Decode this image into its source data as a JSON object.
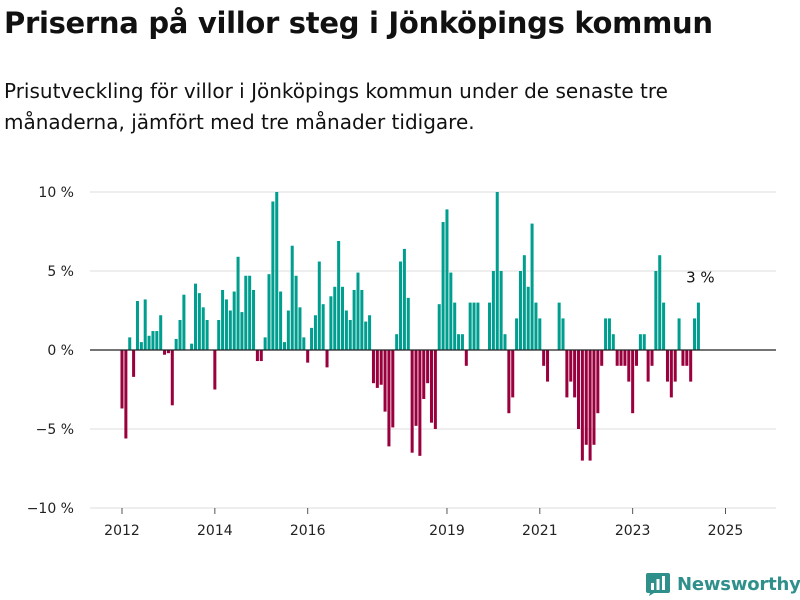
{
  "header": {
    "title": "Priserna på villor steg i Jönköpings kommun",
    "subtitle": "Prisutveckling för villor i Jönköpings kommun under de senaste tre månaderna, jämfört med tre månader tidigare."
  },
  "brand": {
    "name": "Newsworthy",
    "color": "#2f8f8a",
    "icon": "bar-chart-logo-icon"
  },
  "chart_data": {
    "type": "bar",
    "title": "",
    "xlabel": "",
    "ylabel": "",
    "ylim": [
      -10,
      10
    ],
    "yticks": [
      10,
      5,
      0,
      -5,
      -10
    ],
    "ytick_labels": [
      "10 %",
      "5 %",
      "0 %",
      "−5 %",
      "−10 %"
    ],
    "xticks": [
      2012,
      2014,
      2016,
      2019,
      2021,
      2023,
      2025
    ],
    "xtick_labels": [
      "2012",
      "2014",
      "2016",
      "2019",
      "2021",
      "2023",
      "2025"
    ],
    "x_start": 2012.0,
    "x_step": 0.0833333,
    "grid": true,
    "positive_color": "#009e8f",
    "negative_color": "#99003d",
    "annotation": {
      "text": "3 %",
      "target": "last"
    },
    "values": [
      -3.7,
      -5.6,
      0.8,
      -1.7,
      3.1,
      0.5,
      3.2,
      0.9,
      1.2,
      1.2,
      2.2,
      -0.3,
      -0.2,
      -3.5,
      0.7,
      1.9,
      3.5,
      0,
      0.4,
      4.2,
      3.6,
      2.7,
      1.9,
      0,
      -2.5,
      1.9,
      3.8,
      3.2,
      2.5,
      3.7,
      5.9,
      2.4,
      4.7,
      4.7,
      3.8,
      -0.7,
      -0.7,
      0.8,
      4.8,
      9.4,
      10,
      3.7,
      0.5,
      2.5,
      6.6,
      4.7,
      2.7,
      0.8,
      -0.8,
      1.4,
      2.2,
      5.6,
      2.9,
      -1.1,
      3.4,
      4.0,
      6.9,
      4.0,
      2.5,
      1.9,
      3.8,
      4.9,
      3.8,
      1.8,
      2.2,
      -2.1,
      -2.4,
      -2.2,
      -3.9,
      -6.1,
      -4.9,
      1.0,
      5.6,
      6.4,
      3.3,
      -6.5,
      -4.8,
      -6.7,
      -3.1,
      -2.1,
      -4.6,
      -5.0,
      2.9,
      8.1,
      8.9,
      4.9,
      3.0,
      1.0,
      1.0,
      -1.0,
      3.0,
      3.0,
      3.0,
      0,
      0,
      3.0,
      5.0,
      10,
      5.0,
      1.0,
      -4.0,
      -3.0,
      2.0,
      5.0,
      6.0,
      4.0,
      8.0,
      3.0,
      2.0,
      -1.0,
      -2.0,
      0,
      0,
      3.0,
      2.0,
      -3.0,
      -2.0,
      -3.0,
      -5.0,
      -7.0,
      -6.0,
      -7.0,
      -6.0,
      -4.0,
      -1.0,
      2.0,
      2.0,
      1.0,
      -1.0,
      -1.0,
      -1.0,
      -2.0,
      -4.0,
      -1.0,
      1.0,
      1.0,
      -2.0,
      -1.0,
      5.0,
      6.0,
      3.0,
      -2.0,
      -3.0,
      -2.0,
      2.0,
      -1.0,
      -1.0,
      -2.0,
      2.0,
      3.0
    ]
  }
}
